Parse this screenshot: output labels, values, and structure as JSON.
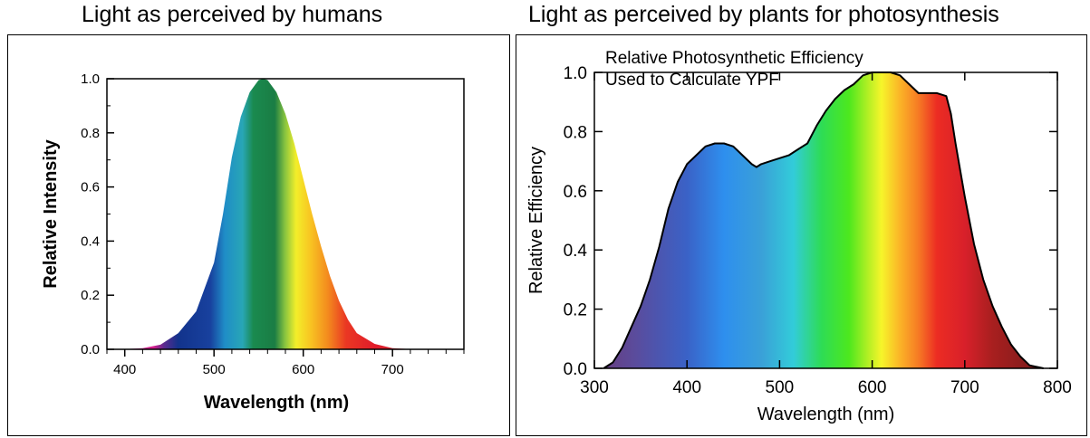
{
  "titles": {
    "left": "Light as perceived by humans",
    "right": "Light as perceived by plants for photosynthesis"
  },
  "chart_data": [
    {
      "type": "area",
      "title": "Light as perceived by humans",
      "xlabel": "Wavelength (nm)",
      "ylabel": "Relative Intensity",
      "xlim": [
        380,
        780
      ],
      "ylim": [
        0,
        1.0
      ],
      "xticks": [
        400,
        500,
        600,
        700
      ],
      "yticks": [
        "0.0",
        "0.2",
        "0.4",
        "0.6",
        "0.8",
        "1.0"
      ],
      "x": [
        380,
        400,
        420,
        440,
        460,
        480,
        500,
        510,
        520,
        530,
        540,
        550,
        555,
        560,
        570,
        580,
        590,
        600,
        610,
        620,
        630,
        640,
        650,
        660,
        680,
        700,
        720,
        750,
        780
      ],
      "y": [
        0.0,
        0.001,
        0.004,
        0.017,
        0.06,
        0.14,
        0.32,
        0.5,
        0.71,
        0.86,
        0.95,
        0.995,
        1.0,
        0.995,
        0.95,
        0.87,
        0.76,
        0.63,
        0.5,
        0.38,
        0.27,
        0.18,
        0.11,
        0.06,
        0.02,
        0.004,
        0.001,
        0.0,
        0.0
      ],
      "fill": "visible spectrum gradient",
      "grid": false
    },
    {
      "type": "area",
      "title": "Light as perceived by plants for photosynthesis",
      "annotation": [
        "Relative Photosynthetic Efficiency",
        "Used to Calculate YPF"
      ],
      "xlabel": "Wavelength (nm)",
      "ylabel": "Relative Efficiency",
      "xlim": [
        300,
        800
      ],
      "ylim": [
        0,
        1.0
      ],
      "xticks": [
        300,
        400,
        500,
        600,
        700,
        800
      ],
      "yticks": [
        "0.0",
        "0.2",
        "0.4",
        "0.6",
        "0.8",
        "1.0"
      ],
      "x": [
        310,
        320,
        330,
        340,
        350,
        360,
        370,
        380,
        390,
        400,
        410,
        420,
        430,
        440,
        450,
        460,
        470,
        475,
        480,
        490,
        500,
        510,
        520,
        530,
        540,
        550,
        560,
        570,
        580,
        590,
        600,
        610,
        620,
        630,
        640,
        650,
        660,
        670,
        680,
        685,
        690,
        700,
        710,
        720,
        730,
        740,
        750,
        760,
        770,
        785
      ],
      "y": [
        0.0,
        0.02,
        0.07,
        0.14,
        0.21,
        0.3,
        0.41,
        0.54,
        0.63,
        0.69,
        0.72,
        0.75,
        0.76,
        0.76,
        0.75,
        0.72,
        0.69,
        0.68,
        0.69,
        0.7,
        0.71,
        0.72,
        0.74,
        0.76,
        0.82,
        0.87,
        0.91,
        0.94,
        0.96,
        0.99,
        1.0,
        1.0,
        1.0,
        0.99,
        0.96,
        0.93,
        0.93,
        0.93,
        0.92,
        0.86,
        0.76,
        0.58,
        0.42,
        0.3,
        0.21,
        0.14,
        0.08,
        0.04,
        0.01,
        0.0
      ],
      "fill": "visible spectrum gradient",
      "grid": false
    }
  ]
}
